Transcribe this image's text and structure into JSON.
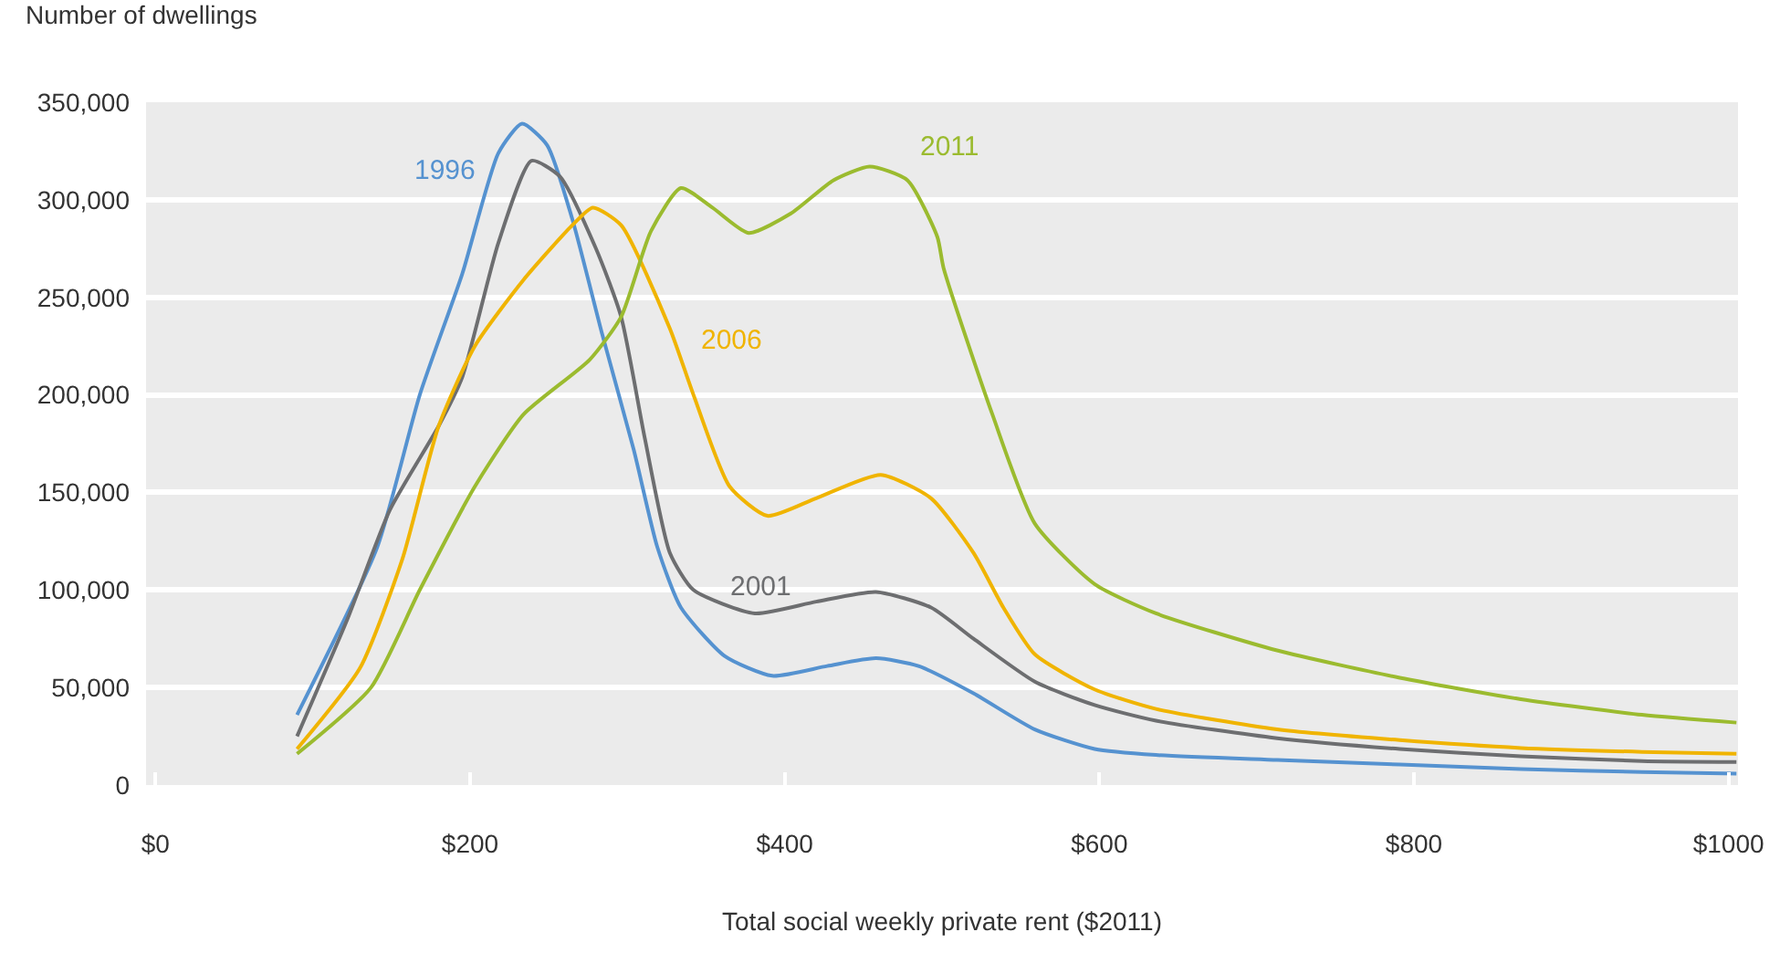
{
  "chart_data": {
    "type": "line",
    "ylabel": "Number of dwellings",
    "xlabel": "Total social weekly private rent ($2011)",
    "xlim": [
      -6,
      1006
    ],
    "xticks": [
      {
        "value": 0,
        "label": "$0"
      },
      {
        "value": 200,
        "label": "$200"
      },
      {
        "value": 400,
        "label": "$400"
      },
      {
        "value": 600,
        "label": "$600"
      },
      {
        "value": 800,
        "label": "$800"
      },
      {
        "value": 1000,
        "label": "$1000"
      }
    ],
    "ylim": [
      0,
      350000
    ],
    "yticks": [
      {
        "value": 0,
        "label": "0"
      },
      {
        "value": 50000,
        "label": "50,000"
      },
      {
        "value": 100000,
        "label": "100,000"
      },
      {
        "value": 150000,
        "label": "150,000"
      },
      {
        "value": 200000,
        "label": "200,000"
      },
      {
        "value": 250000,
        "label": "250,000"
      },
      {
        "value": 300000,
        "label": "300,000"
      },
      {
        "value": 350000,
        "label": "350,000"
      }
    ],
    "grid": "y",
    "legend": false,
    "series": [
      {
        "name": "1996",
        "color": "#5592d0",
        "x": [
          90,
          141,
          168,
          195,
          218,
          233,
          249,
          265,
          284,
          304,
          319,
          334,
          362,
          392,
          427,
          458,
          485,
          520,
          559,
          597,
          636,
          713,
          791,
          868,
          945,
          1005
        ],
        "values": [
          36000,
          122000,
          200000,
          262000,
          324000,
          339000,
          328000,
          290000,
          231000,
          172000,
          122000,
          91000,
          66000,
          56000,
          61000,
          65000,
          61000,
          47000,
          28500,
          18500,
          15400,
          12900,
          10500,
          8200,
          6700,
          5800
        ]
      },
      {
        "name": "2001",
        "color": "#6d6e70",
        "x": [
          90,
          122,
          149,
          180,
          195,
          218,
          239,
          257,
          280,
          296,
          311,
          327,
          342,
          381,
          420,
          458,
          493,
          520,
          559,
          597,
          636,
          713,
          791,
          868,
          945,
          1005
        ],
        "values": [
          25000,
          85000,
          141000,
          184000,
          209000,
          278000,
          320000,
          312000,
          275000,
          240000,
          178000,
          119000,
          100000,
          88000,
          94000,
          99000,
          91000,
          75000,
          53000,
          41000,
          33000,
          24000,
          18500,
          14800,
          12300,
          11800
        ]
      },
      {
        "name": "2006",
        "color": "#f0b400",
        "x": [
          90,
          130,
          157,
          180,
          203,
          234,
          265,
          278,
          296,
          327,
          342,
          365,
          389,
          420,
          461,
          493,
          520,
          539,
          559,
          597,
          636,
          713,
          791,
          868,
          945,
          1005
        ],
        "values": [
          18500,
          60000,
          116000,
          184000,
          225000,
          259000,
          287000,
          296000,
          287000,
          234000,
          200000,
          153000,
          138000,
          147000,
          159000,
          147000,
          119000,
          91000,
          67000,
          49000,
          39000,
          28500,
          23000,
          19000,
          17000,
          16000
        ]
      },
      {
        "name": "2011",
        "color": "#9bbb2f",
        "x": [
          90,
          137,
          168,
          203,
          234,
          276,
          296,
          315,
          334,
          354,
          377,
          404,
          431,
          454,
          478,
          497,
          501,
          532,
          559,
          597,
          636,
          713,
          791,
          868,
          945,
          1005
        ],
        "values": [
          16000,
          50000,
          100000,
          153000,
          190000,
          218000,
          240000,
          284000,
          306000,
          296000,
          283000,
          293000,
          310000,
          317000,
          310000,
          281000,
          265000,
          190000,
          134000,
          103000,
          88000,
          69000,
          55000,
          44000,
          36000,
          32000
        ]
      }
    ]
  }
}
